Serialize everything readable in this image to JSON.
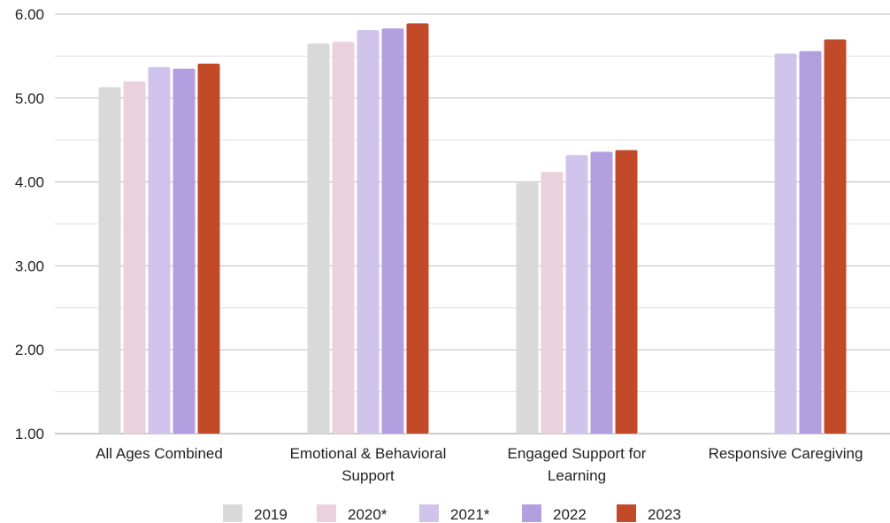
{
  "chart_data": {
    "type": "bar",
    "title": "",
    "xlabel": "",
    "ylabel": "",
    "ylim": [
      1.0,
      6.0
    ],
    "yticks": [
      "1.00",
      "2.00",
      "3.00",
      "4.00",
      "5.00",
      "6.00"
    ],
    "grid": true,
    "legend_position": "bottom",
    "categories": [
      [
        "All Ages Combined"
      ],
      [
        "Emotional & Behavioral",
        "Support"
      ],
      [
        "Engaged Support for",
        "Learning"
      ],
      [
        "Responsive Caregiving"
      ]
    ],
    "series": [
      {
        "name": "2019",
        "color": "#d9d9d9",
        "values": [
          5.13,
          5.65,
          3.99,
          null
        ]
      },
      {
        "name": "2020*",
        "color": "#ead1dc",
        "values": [
          5.2,
          5.67,
          4.12,
          null
        ]
      },
      {
        "name": "2021*",
        "color": "#d0c4ec",
        "values": [
          5.37,
          5.81,
          4.32,
          5.53
        ]
      },
      {
        "name": "2022",
        "color": "#b19fe0",
        "values": [
          5.35,
          5.83,
          4.36,
          5.56
        ]
      },
      {
        "name": "2023",
        "color": "#c24a28",
        "values": [
          5.41,
          5.89,
          4.38,
          5.7
        ]
      }
    ]
  }
}
